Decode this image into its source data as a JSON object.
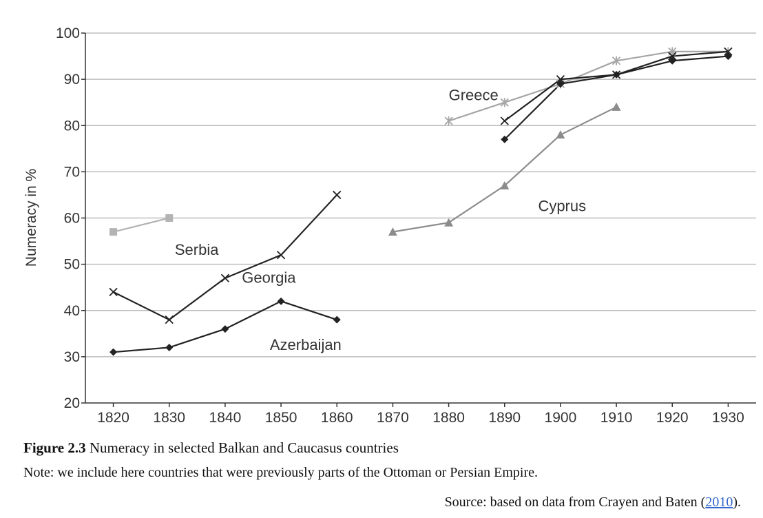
{
  "chart_data": {
    "type": "line",
    "ylabel": "Numeracy in %",
    "xlabel": "",
    "xlim": [
      1815,
      1935
    ],
    "ylim": [
      20,
      100
    ],
    "x_ticks": [
      "1820",
      "1830",
      "1840",
      "1850",
      "1860",
      "1870",
      "1880",
      "1890",
      "1900",
      "1910",
      "1920",
      "1930"
    ],
    "y_ticks": [
      "20",
      "30",
      "40",
      "50",
      "60",
      "70",
      "80",
      "90",
      "100"
    ],
    "grid": "horizontal",
    "series": [
      {
        "name": "Serbia",
        "color": "#b3b3b3",
        "marker": "square",
        "points": [
          [
            1820,
            57
          ],
          [
            1830,
            60
          ]
        ],
        "label_at": [
          1831,
          52
        ]
      },
      {
        "name": "Georgia",
        "color": "#222222",
        "marker": "x",
        "points": [
          [
            1820,
            44
          ],
          [
            1830,
            38
          ],
          [
            1840,
            47
          ],
          [
            1850,
            52
          ],
          [
            1860,
            65
          ]
        ],
        "label_at": [
          1843,
          46
        ]
      },
      {
        "name": "Azerbaijan",
        "color": "#222222",
        "marker": "diamond",
        "points": [
          [
            1820,
            31
          ],
          [
            1830,
            32
          ],
          [
            1840,
            36
          ],
          [
            1850,
            42
          ],
          [
            1860,
            38
          ]
        ],
        "label_at": [
          1848,
          31.5
        ]
      },
      {
        "name": "Greece",
        "color": "#a6a6a6",
        "marker": "star",
        "points": [
          [
            1880,
            81
          ],
          [
            1890,
            85
          ],
          [
            1900,
            89
          ],
          [
            1910,
            94
          ],
          [
            1920,
            96
          ],
          [
            1930,
            96
          ]
        ],
        "label_at": [
          1880,
          85.5
        ]
      },
      {
        "name": "Cyprus",
        "color": "#8c8c8c",
        "marker": "triangle",
        "points": [
          [
            1870,
            57
          ],
          [
            1880,
            59
          ],
          [
            1890,
            67
          ],
          [
            1900,
            78
          ],
          [
            1910,
            84
          ]
        ],
        "label_at": [
          1896,
          61.5
        ]
      },
      {
        "name": "",
        "color": "#222222",
        "marker": "x",
        "points": [
          [
            1890,
            81
          ],
          [
            1900,
            90
          ],
          [
            1910,
            91
          ],
          [
            1920,
            95
          ],
          [
            1930,
            96
          ]
        ]
      },
      {
        "name": "",
        "color": "#222222",
        "marker": "diamond",
        "points": [
          [
            1890,
            77
          ],
          [
            1900,
            89
          ],
          [
            1910,
            91
          ],
          [
            1920,
            94
          ],
          [
            1930,
            95
          ]
        ]
      }
    ]
  },
  "caption": {
    "figure_label": "Figure 2.3",
    "title": "Numeracy in selected Balkan and Caucasus countries",
    "note": "Note: we include here countries that were previously parts of the Ottoman or Persian Empire.",
    "source_prefix": "Source: based on data from Crayen and Baten (",
    "source_year": "2010",
    "source_suffix": ")."
  }
}
